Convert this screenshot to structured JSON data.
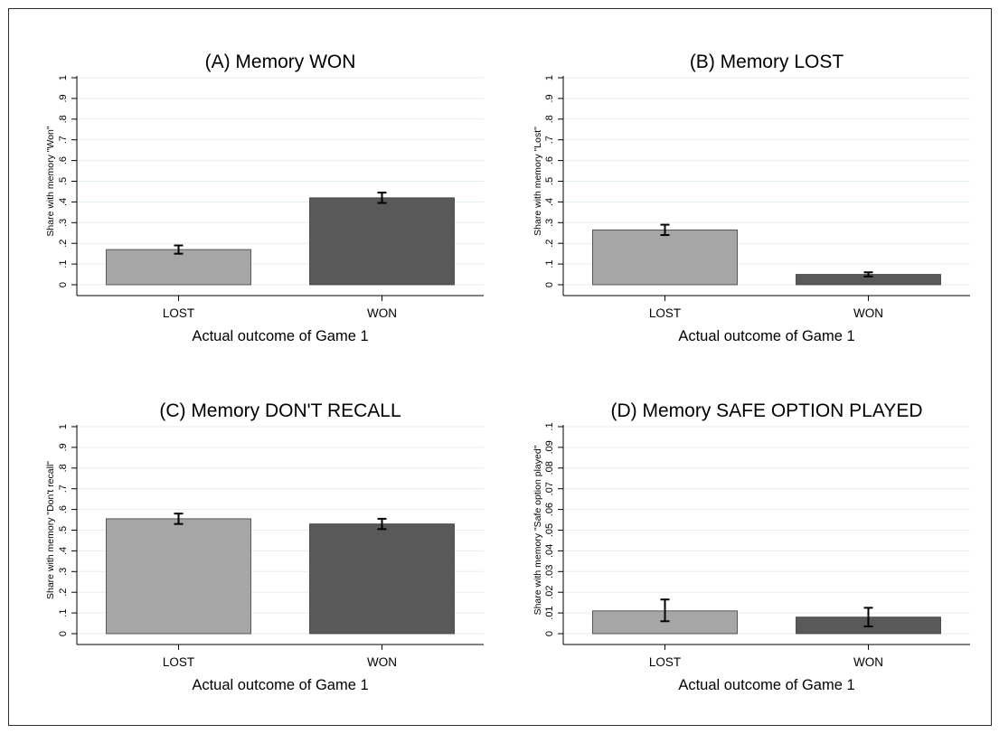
{
  "chart_data": [
    {
      "type": "bar",
      "title": "(A) Memory WON",
      "xlabel": "Actual outcome of Game 1",
      "ylabel": "Share with memory \"Won\"",
      "categories": [
        "LOST",
        "WON"
      ],
      "values": [
        0.17,
        0.42
      ],
      "ci_low": [
        0.15,
        0.395
      ],
      "ci_high": [
        0.19,
        0.445
      ],
      "bar_colors": [
        "#a6a6a6",
        "#595959"
      ],
      "ylim": [
        0,
        1
      ],
      "yticks": [
        "0",
        ".1",
        ".2",
        ".3",
        ".4",
        ".5",
        ".6",
        ".7",
        ".8",
        ".9",
        "1"
      ],
      "grid": true
    },
    {
      "type": "bar",
      "title": "(B) Memory LOST",
      "xlabel": "Actual outcome of Game 1",
      "ylabel": "Share with memory \"Lost\"",
      "categories": [
        "LOST",
        "WON"
      ],
      "values": [
        0.265,
        0.05
      ],
      "ci_low": [
        0.24,
        0.04
      ],
      "ci_high": [
        0.29,
        0.06
      ],
      "bar_colors": [
        "#a6a6a6",
        "#595959"
      ],
      "ylim": [
        0,
        1
      ],
      "yticks": [
        "0",
        ".1",
        ".2",
        ".3",
        ".4",
        ".5",
        ".6",
        ".7",
        ".8",
        ".9",
        "1"
      ],
      "grid": true
    },
    {
      "type": "bar",
      "title": "(C) Memory DON'T RECALL",
      "xlabel": "Actual outcome of Game 1",
      "ylabel": "Share with memory \"Don't recall\"",
      "categories": [
        "LOST",
        "WON"
      ],
      "values": [
        0.555,
        0.53
      ],
      "ci_low": [
        0.53,
        0.505
      ],
      "ci_high": [
        0.58,
        0.555
      ],
      "bar_colors": [
        "#a6a6a6",
        "#595959"
      ],
      "ylim": [
        0,
        1
      ],
      "yticks": [
        "0",
        ".1",
        ".2",
        ".3",
        ".4",
        ".5",
        ".6",
        ".7",
        ".8",
        ".9",
        "1"
      ],
      "grid": true
    },
    {
      "type": "bar",
      "title": "(D) Memory SAFE OPTION PLAYED",
      "xlabel": "Actual outcome of Game 1",
      "ylabel": "Share with memory \"Safe option played\"",
      "categories": [
        "LOST",
        "WON"
      ],
      "values": [
        0.011,
        0.008
      ],
      "ci_low": [
        0.006,
        0.0035
      ],
      "ci_high": [
        0.0165,
        0.0125
      ],
      "bar_colors": [
        "#a6a6a6",
        "#595959"
      ],
      "ylim": [
        0,
        0.1
      ],
      "yticks": [
        "0",
        ".01",
        ".02",
        ".03",
        ".04",
        ".05",
        ".06",
        ".07",
        ".08",
        ".09",
        ".1"
      ],
      "grid": true
    }
  ]
}
